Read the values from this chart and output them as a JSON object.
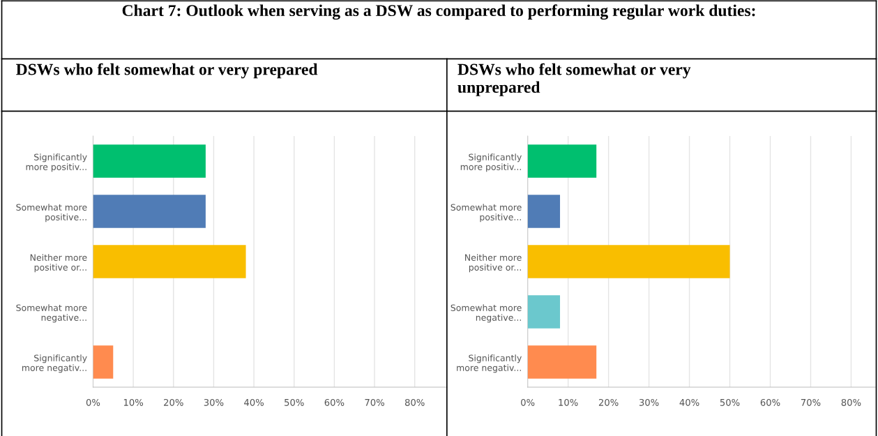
{
  "chart_data": [
    {
      "type": "bar",
      "orientation": "horizontal",
      "title": "DSWs who felt somewhat or very prepared",
      "annotations": [
        "Chart 7: Outlook when serving as a DSW as compared to performing regular work duties:"
      ],
      "categories": [
        "Significantly\nmore positiv...",
        "Somewhat more\npositive...",
        "Neither more\npositive or...",
        "Somewhat more\nnegative...",
        "Significantly\nmore negativ..."
      ],
      "values": [
        28,
        28,
        38,
        0,
        5
      ],
      "colors": [
        "#00bf6f",
        "#507cb6",
        "#f9be00",
        "#6bc8cd",
        "#ff8b4f"
      ],
      "xlim": [
        0,
        88
      ],
      "xticks": [
        {
          "value": 0,
          "label": "0%"
        },
        {
          "value": 10,
          "label": "10%"
        },
        {
          "value": 20,
          "label": "20%"
        },
        {
          "value": 30,
          "label": "30%"
        },
        {
          "value": 40,
          "label": "40%"
        },
        {
          "value": 50,
          "label": "50%"
        },
        {
          "value": 60,
          "label": "60%"
        },
        {
          "value": 70,
          "label": "70%"
        },
        {
          "value": 80,
          "label": "80%"
        }
      ],
      "grid": "x"
    },
    {
      "type": "bar",
      "orientation": "horizontal",
      "title": "DSWs who felt somewhat or very\nunprepared",
      "categories": [
        "Significantly\nmore positiv...",
        "Somewhat more\npositive...",
        "Neither more\npositive or...",
        "Somewhat more\nnegative...",
        "Significantly\nmore negativ..."
      ],
      "values": [
        17,
        8,
        50,
        8,
        17
      ],
      "colors": [
        "#00bf6f",
        "#507cb6",
        "#f9be00",
        "#6bc8cd",
        "#ff8b4f"
      ],
      "xlim": [
        0,
        86
      ],
      "xticks": [
        {
          "value": 0,
          "label": "0%"
        },
        {
          "value": 10,
          "label": "10%"
        },
        {
          "value": 20,
          "label": "20%"
        },
        {
          "value": 30,
          "label": "30%"
        },
        {
          "value": 40,
          "label": "40%"
        },
        {
          "value": 50,
          "label": "50%"
        },
        {
          "value": 60,
          "label": "60%"
        },
        {
          "value": 70,
          "label": "70%"
        },
        {
          "value": 80,
          "label": "80%"
        }
      ],
      "grid": "x"
    }
  ]
}
